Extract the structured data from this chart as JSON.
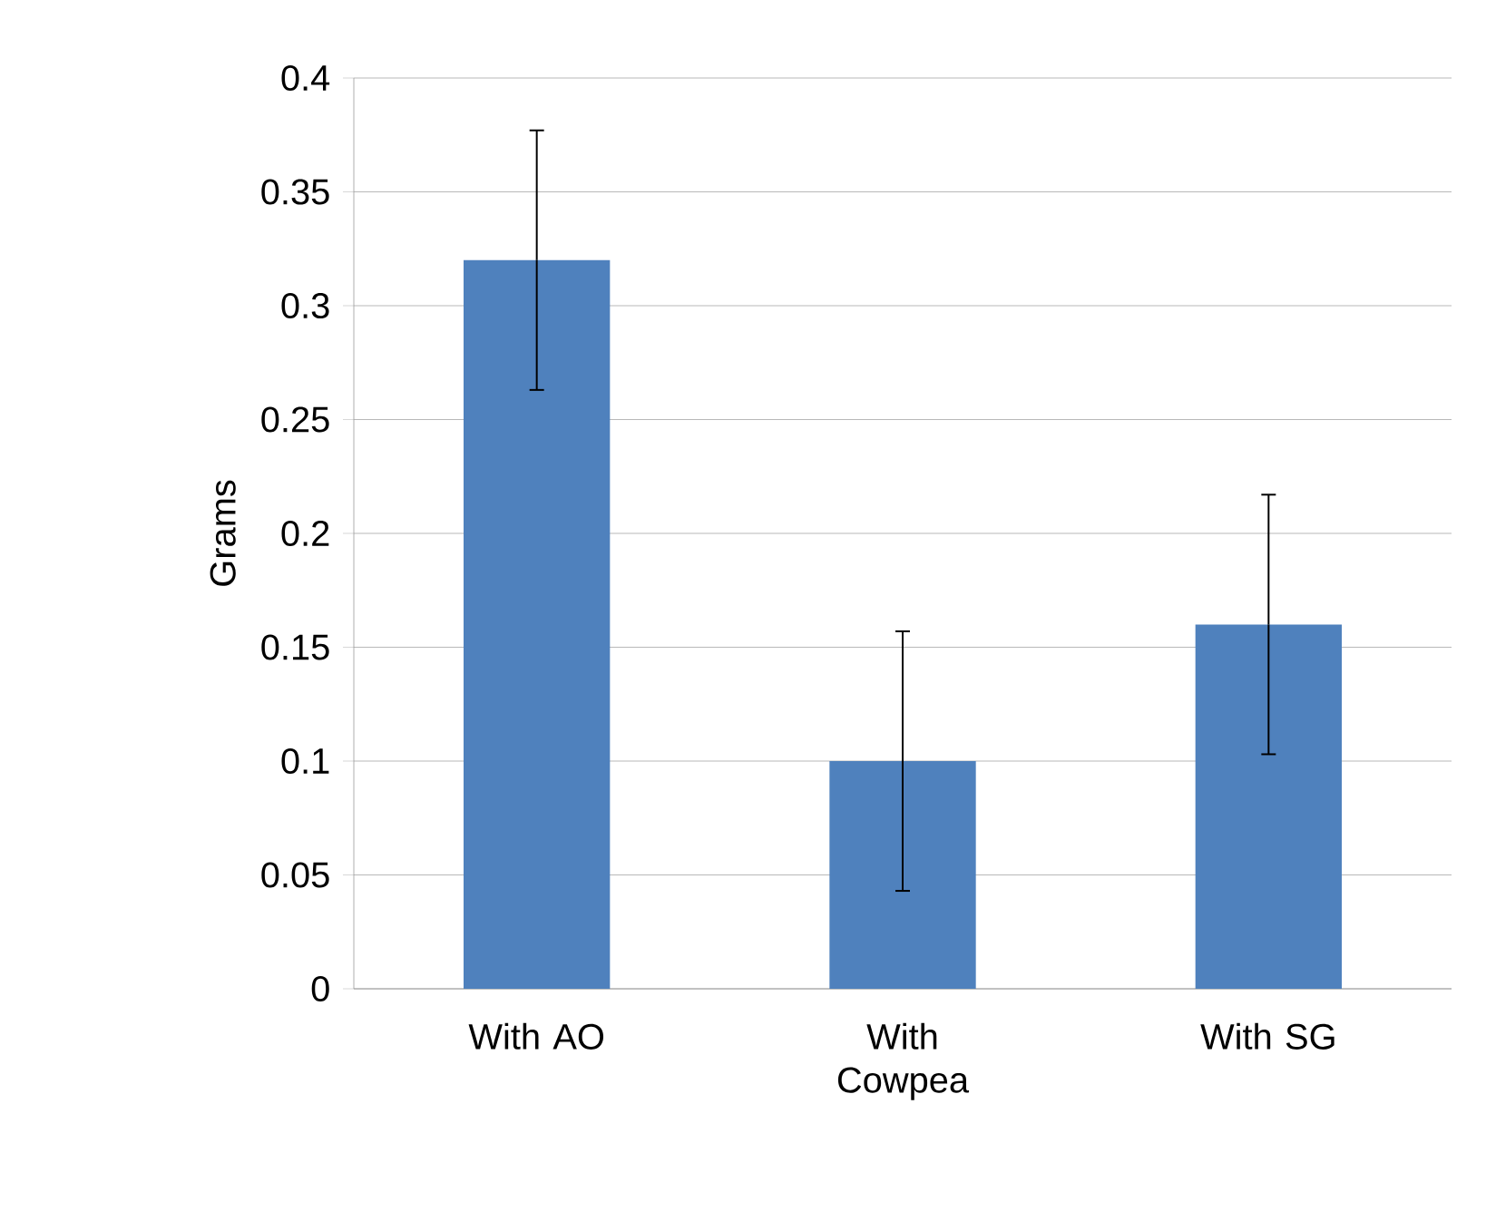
{
  "chart_data": {
    "type": "bar",
    "ylabel": "Grams",
    "categories": [
      "With AO",
      "With Cowpea",
      "With SG"
    ],
    "values": [
      0.32,
      0.1,
      0.16
    ],
    "errors": [
      0.057,
      0.057,
      0.057
    ],
    "color": "#4f81bd",
    "ylim": [
      0,
      0.4
    ],
    "yticks": [
      0,
      0.05,
      0.1,
      0.15,
      0.2,
      0.25,
      0.3,
      0.35,
      0.4
    ],
    "grid": "y"
  }
}
